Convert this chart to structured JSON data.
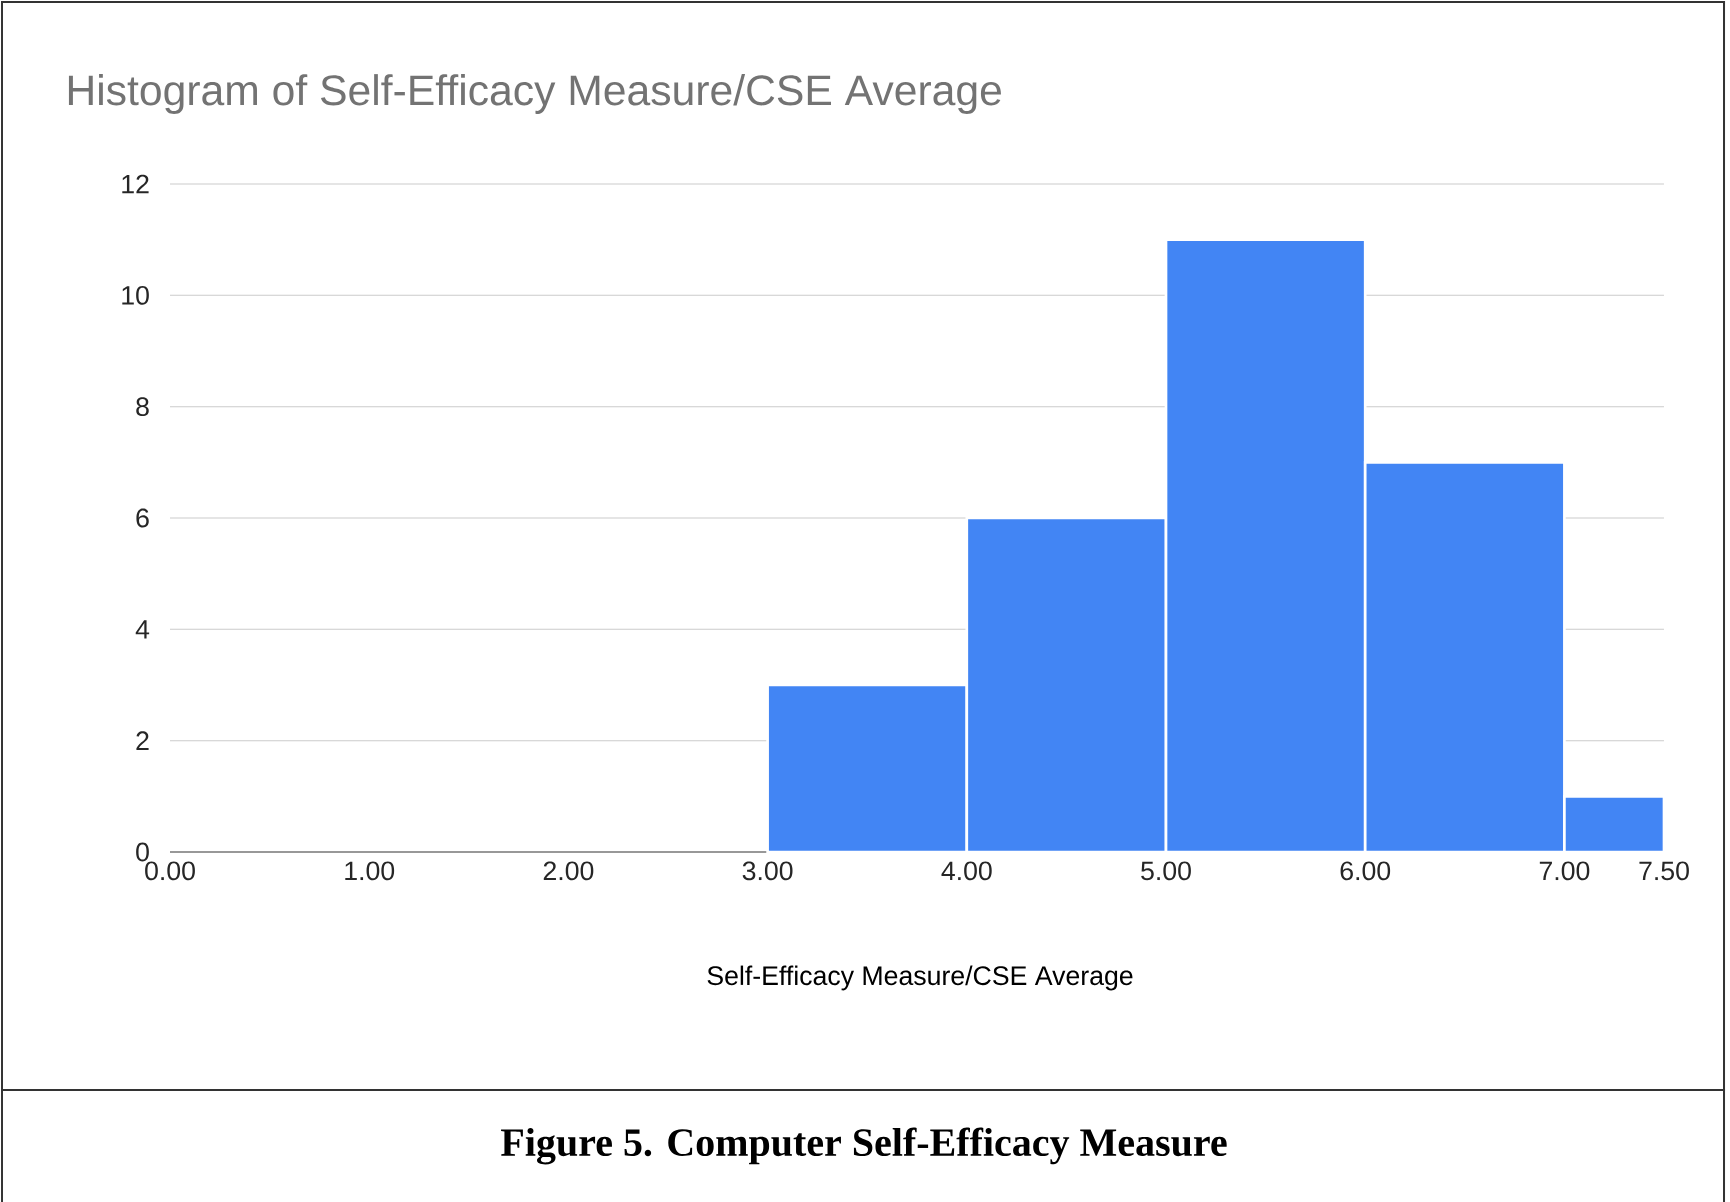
{
  "chart_data": {
    "type": "histogram",
    "title": "Histogram of Self-Efficacy Measure/CSE Average",
    "xlabel": "Self-Efficacy Measure/CSE Average",
    "bins": [
      3,
      4,
      5,
      6,
      7,
      7.5
    ],
    "values": [
      3,
      6,
      11,
      7,
      1
    ],
    "color": "#4285f4",
    "ylim": [
      0,
      12
    ],
    "yticks": [
      0,
      2,
      4,
      6,
      8,
      10,
      12
    ],
    "xticks": [
      {
        "value": 0,
        "label": "0.00"
      },
      {
        "value": 1,
        "label": "1.00"
      },
      {
        "value": 2,
        "label": "2.00"
      },
      {
        "value": 3,
        "label": "3.00"
      },
      {
        "value": 4,
        "label": "4.00"
      },
      {
        "value": 5,
        "label": "5.00"
      },
      {
        "value": 6,
        "label": "6.00"
      },
      {
        "value": 7,
        "label": "7.00"
      },
      {
        "value": 7.5,
        "label": "7.50"
      }
    ],
    "xlim": [
      0,
      7.5
    ],
    "grid": "y",
    "annotations": [
      "Figure 5. Computer Self-Efficacy Measure"
    ]
  }
}
